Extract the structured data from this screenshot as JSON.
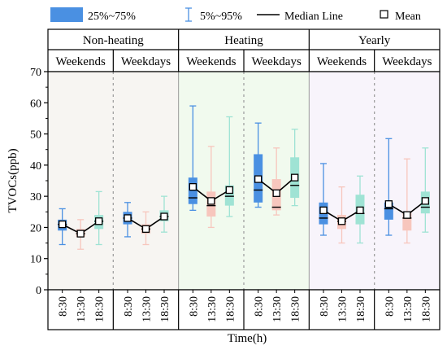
{
  "chart_data": {
    "type": "box",
    "ylabel": "TVOCs(ppb)",
    "xlabel": "Time(h)",
    "ylim": [
      0,
      70
    ],
    "yticks": [
      0,
      10,
      20,
      30,
      40,
      50,
      60,
      70
    ],
    "categories": [
      "8:30",
      "13:30",
      "18:30"
    ],
    "legend": {
      "box": "25%~75%",
      "whisker": "5%~95%",
      "median": "Median Line",
      "mean": "Mean"
    },
    "colors": {
      "8:30": "#4a90e2",
      "13:30": "#f7c6bd",
      "18:30": "#9fe3d4",
      "panel_nonheating": "#f7f5f2",
      "panel_heating": "#f1faee",
      "panel_yearly": "#f8f4fb"
    },
    "seasons": [
      {
        "name": "Non-heating",
        "groups": [
          {
            "name": "Weekends",
            "boxes": [
              {
                "time": "8:30",
                "p5": 14.5,
                "q1": 19.0,
                "median": 21.0,
                "q3": 22.5,
                "p95": 26.0,
                "mean": 21.0
              },
              {
                "time": "13:30",
                "p5": 13.0,
                "q1": 17.0,
                "median": 18.0,
                "q3": 19.5,
                "p95": 22.5,
                "mean": 18.0
              },
              {
                "time": "18:30",
                "p5": 14.5,
                "q1": 19.5,
                "median": 22.0,
                "q3": 24.0,
                "p95": 31.5,
                "mean": 22.0
              }
            ]
          },
          {
            "name": "Weekdays",
            "boxes": [
              {
                "time": "8:30",
                "p5": 17.0,
                "q1": 21.0,
                "median": 23.0,
                "q3": 25.0,
                "p95": 28.0,
                "mean": 23.0
              },
              {
                "time": "13:30",
                "p5": 14.5,
                "q1": 18.0,
                "median": 19.5,
                "q3": 21.0,
                "p95": 25.0,
                "mean": 19.5
              },
              {
                "time": "18:30",
                "p5": 18.5,
                "q1": 22.0,
                "median": 23.5,
                "q3": 25.5,
                "p95": 30.0,
                "mean": 23.5
              }
            ]
          }
        ]
      },
      {
        "name": "Heating",
        "groups": [
          {
            "name": "Weekends",
            "boxes": [
              {
                "time": "8:30",
                "p5": 25.5,
                "q1": 27.5,
                "median": 29.5,
                "q3": 36.0,
                "p95": 59.0,
                "mean": 33.0
              },
              {
                "time": "13:30",
                "p5": 20.0,
                "q1": 23.5,
                "median": 27.0,
                "q3": 31.5,
                "p95": 46.0,
                "mean": 28.5
              },
              {
                "time": "18:30",
                "p5": 23.5,
                "q1": 27.0,
                "median": 30.0,
                "q3": 33.5,
                "p95": 55.5,
                "mean": 32.0
              }
            ]
          },
          {
            "name": "Weekdays",
            "boxes": [
              {
                "time": "8:30",
                "p5": 26.5,
                "q1": 28.0,
                "median": 32.0,
                "q3": 43.5,
                "p95": 53.5,
                "mean": 35.5
              },
              {
                "time": "13:30",
                "p5": 24.0,
                "q1": 25.5,
                "median": 26.5,
                "q3": 35.5,
                "p95": 45.5,
                "mean": 31.0
              },
              {
                "time": "18:30",
                "p5": 27.0,
                "q1": 29.5,
                "median": 33.5,
                "q3": 42.5,
                "p95": 51.5,
                "mean": 36.0
              }
            ]
          }
        ]
      },
      {
        "name": "Yearly",
        "groups": [
          {
            "name": "Weekends",
            "boxes": [
              {
                "time": "8:30",
                "p5": 17.5,
                "q1": 21.0,
                "median": 23.0,
                "q3": 28.0,
                "p95": 40.5,
                "mean": 25.5
              },
              {
                "time": "13:30",
                "p5": 15.0,
                "q1": 19.5,
                "median": 22.0,
                "q3": 24.0,
                "p95": 33.0,
                "mean": 22.0
              },
              {
                "time": "18:30",
                "p5": 15.0,
                "q1": 21.0,
                "median": 24.5,
                "q3": 30.5,
                "p95": 36.5,
                "mean": 25.5
              }
            ]
          },
          {
            "name": "Weekdays",
            "boxes": [
              {
                "time": "8:30",
                "p5": 17.5,
                "q1": 22.5,
                "median": 26.0,
                "q3": 28.0,
                "p95": 48.5,
                "mean": 27.5
              },
              {
                "time": "13:30",
                "p5": 15.0,
                "q1": 19.0,
                "median": 23.0,
                "q3": 25.0,
                "p95": 42.0,
                "mean": 24.0
              },
              {
                "time": "18:30",
                "p5": 18.5,
                "q1": 24.5,
                "median": 26.5,
                "q3": 31.5,
                "p95": 45.5,
                "mean": 28.5
              }
            ]
          }
        ]
      }
    ]
  }
}
